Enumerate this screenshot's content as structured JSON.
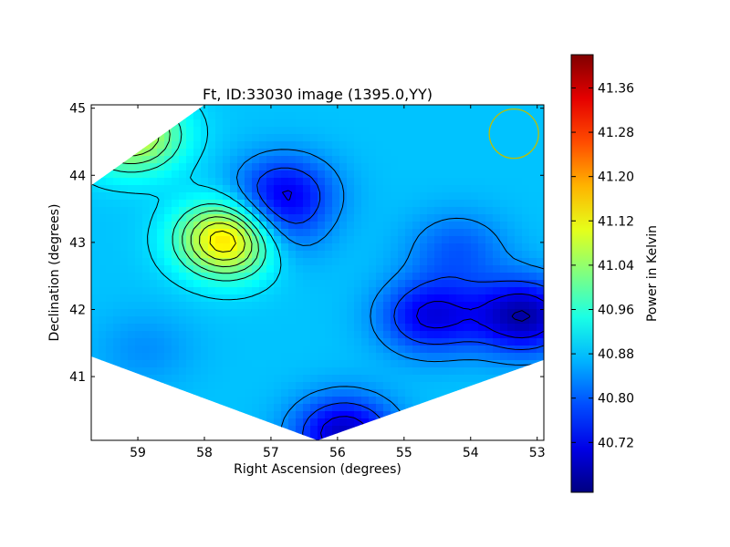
{
  "chart_data": {
    "type": "heatmap",
    "title": "Ft, ID:33030 image (1395.0,YY)",
    "xlabel": "Right Ascension (degrees)",
    "ylabel": "Declination (degrees)",
    "colorbar_label": "Power in Kelvin",
    "xlim": [
      59.7,
      52.9
    ],
    "ylim": [
      40.05,
      45.05
    ],
    "x_ticks": [
      59,
      58,
      57,
      56,
      55,
      54,
      53
    ],
    "y_ticks": [
      41,
      42,
      43,
      44,
      45
    ],
    "colorbar_range": [
      40.63,
      41.42
    ],
    "colorbar_ticks": [
      "41.36",
      "41.28",
      "41.20",
      "41.12",
      "41.04",
      "40.96",
      "40.88",
      "40.80",
      "40.72"
    ],
    "colormap": "jet",
    "beam_circle": {
      "ra": 53.35,
      "dec": 44.62,
      "color": "#bfbf00"
    },
    "field_region": {
      "ra": [
        58.0,
        52.9,
        52.9,
        56.3,
        59.7,
        59.7
      ],
      "dec": [
        45.05,
        45.05,
        41.25,
        40.05,
        41.3,
        43.85
      ]
    },
    "sources": [
      {
        "ra": 57.6,
        "dec": 43.05,
        "power": 0.33
      },
      {
        "ra": 57.05,
        "dec": 43.15,
        "power": -0.12
      },
      {
        "ra": 59.1,
        "dec": 44.6,
        "power": 0.22
      },
      {
        "ra": 56.8,
        "dec": 43.75,
        "power": -0.15
      },
      {
        "ra": 54.6,
        "dec": 41.9,
        "power": -0.17
      },
      {
        "ra": 53.2,
        "dec": 41.9,
        "power": -0.22
      },
      {
        "ra": 55.9,
        "dec": 40.15,
        "power": -0.2
      },
      {
        "ra": 54.2,
        "dec": 42.9,
        "power": -0.08
      },
      {
        "ra": 58.9,
        "dec": 41.4,
        "power": -0.04
      }
    ],
    "base_power": 40.88,
    "contour_levels": [
      40.66,
      40.72,
      40.78,
      40.84,
      40.9,
      40.96,
      41.0,
      41.04,
      41.08,
      41.12,
      41.16,
      41.2,
      41.24,
      41.28,
      41.32,
      41.36
    ]
  }
}
